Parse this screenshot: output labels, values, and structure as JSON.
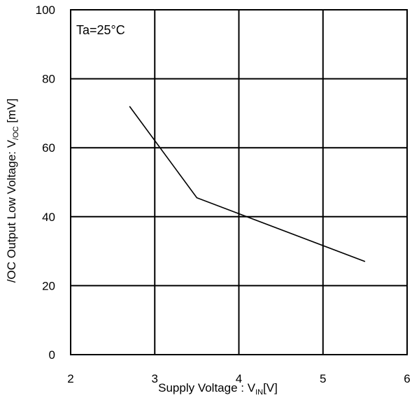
{
  "chart_data": {
    "type": "line",
    "title": "",
    "annotation": "Ta=25°C",
    "xlabel": {
      "prefix": "Supply Voltage : V",
      "subscript": "IN",
      "suffix": "[V]"
    },
    "ylabel": {
      "prefix": "/OC Output Low Voltage: V",
      "subscript": "/OC",
      "suffix": " [mV]"
    },
    "xlim": [
      2,
      6
    ],
    "ylim": [
      0,
      100
    ],
    "xticks": [
      2,
      3,
      4,
      5,
      6
    ],
    "xtick_labels": [
      "2",
      "3",
      "4",
      "5",
      "6"
    ],
    "yticks": [
      0,
      20,
      40,
      60,
      80,
      100
    ],
    "ytick_labels": [
      "0",
      "20",
      "40",
      "60",
      "80",
      "100"
    ],
    "grid": true,
    "legend": "none",
    "series": [
      {
        "x": [
          2.7,
          3.5,
          5.5
        ],
        "y": [
          72,
          45.5,
          27
        ],
        "color": "#000000"
      }
    ]
  }
}
